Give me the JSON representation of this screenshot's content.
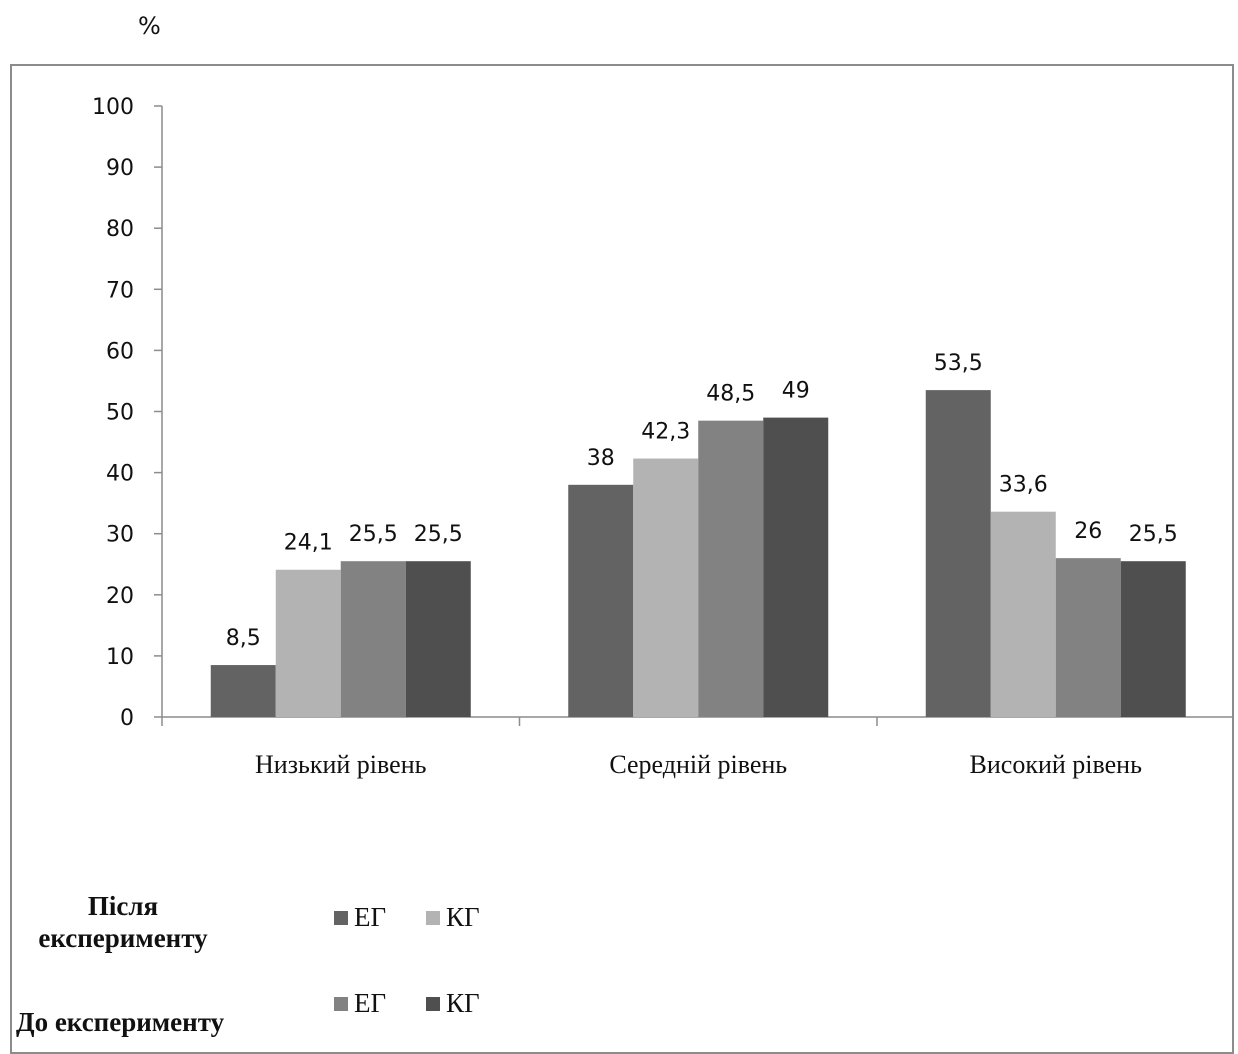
{
  "chart_data": {
    "type": "bar",
    "ylabel": "%",
    "ylim": [
      0,
      100
    ],
    "yticks": [
      "0",
      "10",
      "20",
      "30",
      "40",
      "50",
      "60",
      "70",
      "80",
      "90",
      "100"
    ],
    "categories": [
      "Низький рівень",
      "Середній  рівень",
      "Високий рівень"
    ],
    "series": [
      {
        "name": "ЕГ",
        "group": "Після експерименту",
        "color": "#636363",
        "values": [
          8.5,
          38,
          53.5
        ],
        "labels": [
          "8,5",
          "38",
          "53,5"
        ]
      },
      {
        "name": "КГ",
        "group": "Після експерименту",
        "color": "#b3b3b3",
        "values": [
          24.1,
          42.3,
          33.6
        ],
        "labels": [
          "24,1",
          "42,3",
          "33,6"
        ]
      },
      {
        "name": "ЕГ",
        "group": "До експерименту",
        "color": "#828282",
        "values": [
          25.5,
          48.5,
          26
        ],
        "labels": [
          "25,5",
          "48,5",
          "26"
        ]
      },
      {
        "name": "КГ",
        "group": "До експерименту",
        "color": "#4f4f4f",
        "values": [
          25.5,
          49,
          25.5
        ],
        "labels": [
          "25,5",
          "49",
          "25,5"
        ]
      }
    ]
  },
  "legend": {
    "after": {
      "line1": "Після",
      "line2": "експерименту",
      "items": [
        {
          "label": "ЕГ",
          "color": "#636363"
        },
        {
          "label": "КГ",
          "color": "#b3b3b3"
        }
      ]
    },
    "before": {
      "label": "До експерименту",
      "items": [
        {
          "label": "ЕГ",
          "color": "#828282"
        },
        {
          "label": "КГ",
          "color": "#4f4f4f"
        }
      ]
    }
  }
}
